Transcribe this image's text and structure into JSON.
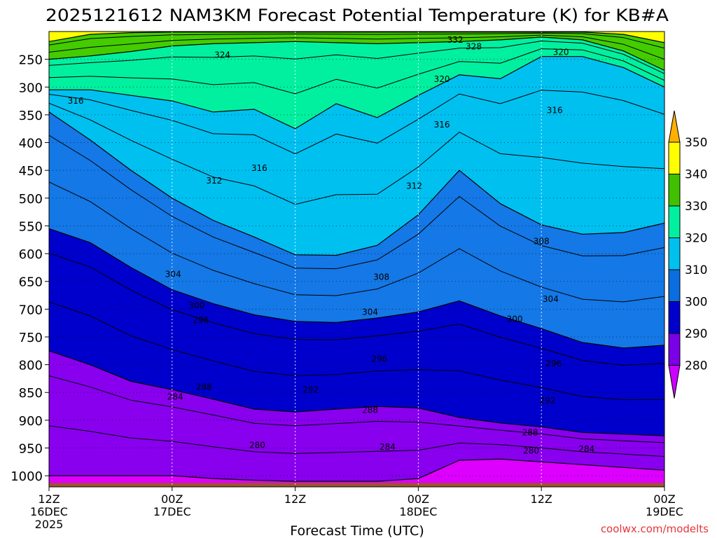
{
  "chart_data": {
    "type": "heatmap",
    "title": "2025121612 NAM3KM Forecast Potential Temperature (K) for KB#A",
    "xlabel": "Forecast Time (UTC)",
    "ylabel": "",
    "credit": "coolwx.com/modelts",
    "x_ticks": [
      {
        "hours": 0,
        "line1": "12Z",
        "line2": "16DEC",
        "line3": "2025"
      },
      {
        "hours": 12,
        "line1": "00Z",
        "line2": "17DEC",
        "line3": ""
      },
      {
        "hours": 24,
        "line1": "12Z",
        "line2": "",
        "line3": ""
      },
      {
        "hours": 36,
        "line1": "00Z",
        "line2": "18DEC",
        "line3": ""
      },
      {
        "hours": 48,
        "line1": "12Z",
        "line2": "",
        "line3": ""
      },
      {
        "hours": 60,
        "line1": "00Z",
        "line2": "19DEC",
        "line3": ""
      }
    ],
    "x_range_hours": [
      0,
      60
    ],
    "pressure_levels": [
      250,
      300,
      350,
      400,
      450,
      500,
      550,
      600,
      650,
      700,
      750,
      800,
      850,
      900,
      950,
      1000
    ],
    "y_range_hpa": [
      200,
      1020
    ],
    "ground_hpa": 1013,
    "colorbar": {
      "bounds": [
        280,
        290,
        300,
        310,
        320,
        330,
        340,
        350
      ],
      "labels": [
        "280",
        "290",
        "300",
        "310",
        "320",
        "330",
        "340",
        "350"
      ],
      "colors": [
        "#cc00ff",
        "#7a00e6",
        "#0000cc",
        "#0a6ee0",
        "#00c0f0",
        "#00f0a0",
        "#40c000",
        "#ffff00",
        "#ffb000"
      ]
    },
    "band_colors": {
      "below_280": "#dd00ff",
      "280_290": "#8800ee",
      "290_300": "#0000cc",
      "300_310": "#1478e6",
      "310_320": "#00c0f0",
      "320_330": "#00f0a0",
      "330_340": "#44cc00",
      "340_350": "#ffff00",
      "ground": "#a0522d"
    },
    "band_boundaries_hpa": {
      "hours": [
        0,
        4,
        8,
        12,
        16,
        20,
        24,
        28,
        32,
        36,
        40,
        44,
        48,
        52,
        56,
        60
      ],
      "theta_280": [
        1000,
        1000,
        1000,
        1000,
        1005,
        1008,
        1010,
        1010,
        1010,
        1005,
        972,
        970,
        975,
        980,
        985,
        990
      ],
      "theta_290": [
        775,
        800,
        830,
        845,
        862,
        880,
        885,
        880,
        875,
        878,
        895,
        905,
        912,
        922,
        925,
        928
      ],
      "theta_300": [
        555,
        580,
        625,
        665,
        690,
        710,
        722,
        724,
        716,
        705,
        685,
        712,
        735,
        760,
        770,
        765
      ],
      "theta_310": [
        345,
        395,
        450,
        500,
        540,
        570,
        602,
        603,
        585,
        530,
        450,
        510,
        548,
        565,
        562,
        545
      ],
      "theta_320": [
        305,
        305,
        315,
        325,
        345,
        340,
        375,
        330,
        355,
        315,
        278,
        285,
        245,
        245,
        265,
        300
      ],
      "theta_330": [
        250,
        244,
        236,
        226,
        222,
        220,
        218,
        220,
        222,
        220,
        218,
        215,
        210,
        215,
        235,
        270
      ],
      "theta_340": [
        218,
        205,
        202,
        201,
        201,
        201,
        201,
        201,
        201,
        201,
        201,
        201,
        201,
        201,
        205,
        220
      ]
    },
    "contour_labels": [
      {
        "text": "332",
        "hours": 39.6,
        "hpa": 215
      },
      {
        "text": "328",
        "hours": 41.4,
        "hpa": 227
      },
      {
        "text": "324",
        "hours": 16.9,
        "hpa": 242
      },
      {
        "text": "320",
        "hours": 49.9,
        "hpa": 237
      },
      {
        "text": "320",
        "hours": 38.3,
        "hpa": 286
      },
      {
        "text": "316",
        "hours": 2.6,
        "hpa": 325
      },
      {
        "text": "316",
        "hours": 49.3,
        "hpa": 342
      },
      {
        "text": "316",
        "hours": 38.3,
        "hpa": 368
      },
      {
        "text": "316",
        "hours": 20.5,
        "hpa": 446
      },
      {
        "text": "312",
        "hours": 16.1,
        "hpa": 469
      },
      {
        "text": "312",
        "hours": 35.6,
        "hpa": 478
      },
      {
        "text": "308",
        "hours": 48.0,
        "hpa": 578
      },
      {
        "text": "308",
        "hours": 32.4,
        "hpa": 642
      },
      {
        "text": "304",
        "hours": 12.1,
        "hpa": 637
      },
      {
        "text": "304",
        "hours": 48.9,
        "hpa": 682
      },
      {
        "text": "304",
        "hours": 31.3,
        "hpa": 705
      },
      {
        "text": "300",
        "hours": 14.4,
        "hpa": 693
      },
      {
        "text": "300",
        "hours": 45.4,
        "hpa": 718
      },
      {
        "text": "296",
        "hours": 14.8,
        "hpa": 720
      },
      {
        "text": "296",
        "hours": 32.2,
        "hpa": 790
      },
      {
        "text": "296",
        "hours": 49.2,
        "hpa": 798
      },
      {
        "text": "292",
        "hours": 25.5,
        "hpa": 845
      },
      {
        "text": "292",
        "hours": 48.6,
        "hpa": 865
      },
      {
        "text": "288",
        "hours": 15.1,
        "hpa": 840
      },
      {
        "text": "288",
        "hours": 31.3,
        "hpa": 882
      },
      {
        "text": "288",
        "hours": 46.9,
        "hpa": 922
      },
      {
        "text": "284",
        "hours": 12.3,
        "hpa": 858
      },
      {
        "text": "284",
        "hours": 33.0,
        "hpa": 948
      },
      {
        "text": "284",
        "hours": 52.4,
        "hpa": 952
      },
      {
        "text": "280",
        "hours": 20.3,
        "hpa": 945
      },
      {
        "text": "280",
        "hours": 47.0,
        "hpa": 955
      }
    ]
  }
}
